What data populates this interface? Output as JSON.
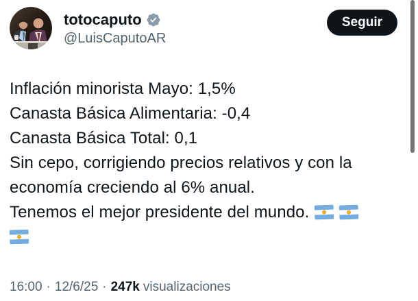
{
  "header": {
    "display_name": "totocaputo",
    "handle": "@LuisCaputoAR",
    "follow_label": "Seguir",
    "verified_icon": "verified-badge-icon",
    "avatar_icon": "profile-photo-two-men-in-suits"
  },
  "tweet": {
    "lines": [
      {
        "text": "Inflación minorista Mayo: 1,5%",
        "flags": 0
      },
      {
        "text": "Canasta Básica Alimentaria: -0,4",
        "flags": 0
      },
      {
        "text": "Canasta Básica Total: 0,1",
        "flags": 0
      },
      {
        "text": "Sin cepo, corrigiendo precios relativos y con la",
        "flags": 0
      },
      {
        "text": "economía creciendo al 6% anual.",
        "flags": 0
      },
      {
        "text": "Tenemos el mejor presidente del mundo.",
        "flags": 2
      },
      {
        "text": "",
        "flags": 1
      }
    ],
    "flag_icon": "argentina-flag-icon",
    "full_text": "Inflación minorista Mayo: 1,5% Canasta Básica Alimentaria: -0,4 Canasta Básica Total: 0,1 Sin cepo, corrigiendo precios relativos y con la economía creciendo al 6% anual. Tenemos el mejor presidente del mundo. 🇦🇷🇦🇷🇦🇷"
  },
  "footer": {
    "time": "16:00",
    "sep": "·",
    "date": "12/6/25",
    "views_count": "247k",
    "views_label": "visualizaciones"
  },
  "colors": {
    "background": "#ffffff",
    "text_primary": "#0f1419",
    "text_secondary": "#536471",
    "follow_button_bg": "#0f1419",
    "follow_button_text": "#ffffff",
    "verified_badge": "#8b9cab",
    "flag_blue": "#74acdf",
    "flag_sun": "#f6b40e",
    "scrollbar": "#757575"
  }
}
